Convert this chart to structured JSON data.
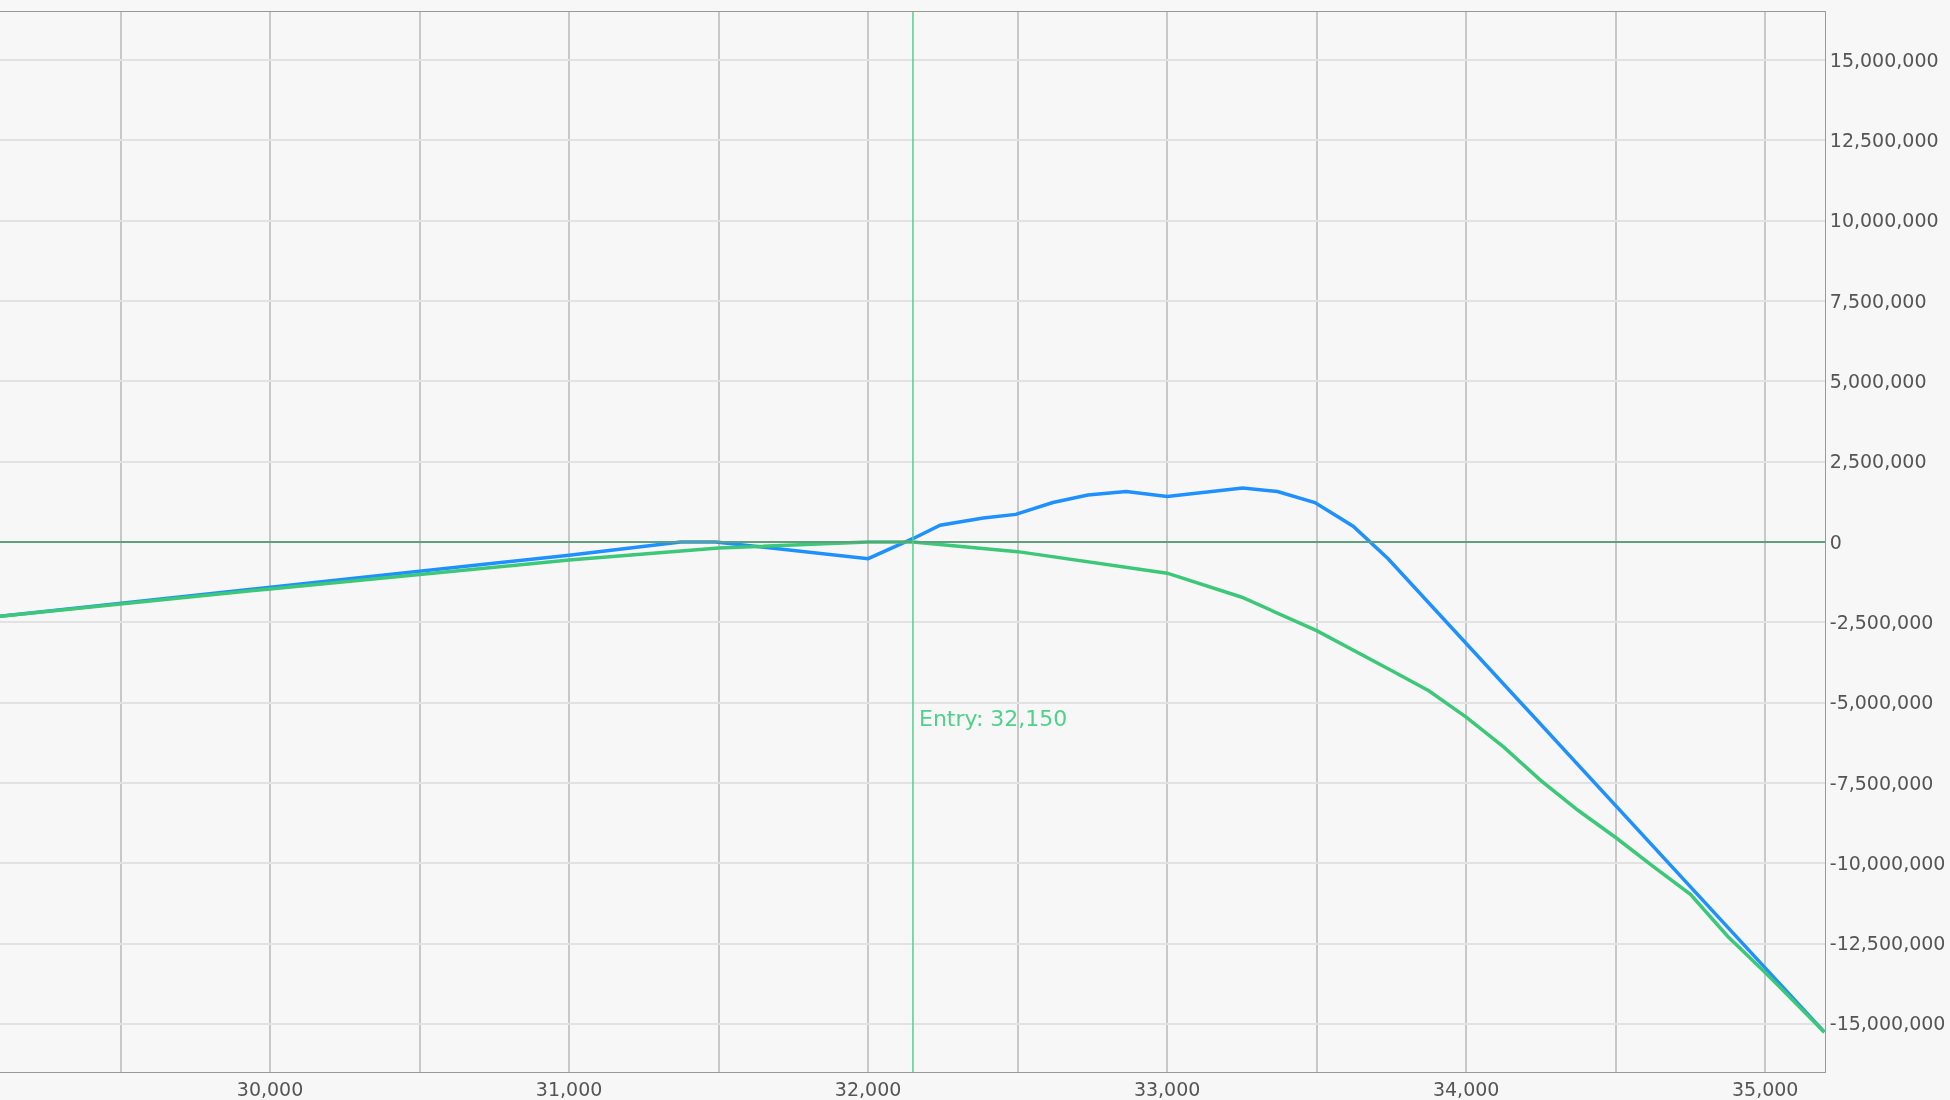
{
  "chart_data": {
    "type": "line",
    "x": [
      29097,
      31000,
      31373,
      31490,
      32000,
      32151,
      32241,
      32385,
      32494,
      32618,
      32735,
      32863,
      33000,
      33253,
      33369,
      33494,
      33622,
      33739,
      35198
    ],
    "series": [
      {
        "color": "#1e90ff",
        "values": [
          -2310000.0,
          -410000.0,
          0,
          0,
          -520000.0,
          110000.0,
          520000.0,
          750000.0,
          860000.0,
          1230000.0,
          1460000.0,
          1570000.0,
          1420000.0,
          1680000.0,
          1570000.0,
          1230000.0,
          490000.0,
          -520000.0,
          -15260000.0
        ]
      },
      {
        "color": "#3cc878",
        "x": [
          29097,
          30000,
          31000,
          31500,
          32000,
          32150,
          32500,
          33000,
          33250,
          33500,
          33750,
          33875,
          34000,
          34125,
          34250,
          34375,
          34500,
          34625,
          34750,
          34875,
          35000,
          35198
        ],
        "values": [
          -2310000.0,
          -1460000.0,
          -560000.0,
          -190000.0,
          0,
          0,
          -300000.0,
          -970000.0,
          -1720000.0,
          -2760000.0,
          -4000000.0,
          -4630000.0,
          -5450000.0,
          -6380000.0,
          -7430000.0,
          -8360000.0,
          -9200000.0,
          -10100000.0,
          -10970000.0,
          -12280000.0,
          -13400000.0,
          -15260000.0
        ]
      }
    ],
    "xlim": [
      29097,
      35200
    ],
    "xticks": [
      {
        "value": 29500,
        "label": null
      },
      {
        "value": 30000,
        "label": "30,000"
      },
      {
        "value": 30500,
        "label": null
      },
      {
        "value": 31000,
        "label": "31,000"
      },
      {
        "value": 31500,
        "label": null
      },
      {
        "value": 32000,
        "label": "32,000"
      },
      {
        "value": 32500,
        "label": null
      },
      {
        "value": 33000,
        "label": "33,000"
      },
      {
        "value": 33500,
        "label": null
      },
      {
        "value": 34000,
        "label": "34,000"
      },
      {
        "value": 34500,
        "label": null
      },
      {
        "value": 35000,
        "label": "35,000"
      }
    ],
    "ylim": [
      -16500000,
      16500000
    ],
    "yticks": [
      {
        "value": -15000000,
        "label": "-15,000,000"
      },
      {
        "value": -12500000,
        "label": "-12,500,000"
      },
      {
        "value": -10000000,
        "label": "-10,000,000"
      },
      {
        "value": -7500000,
        "label": "-7,500,000"
      },
      {
        "value": -5000000,
        "label": "-5,000,000"
      },
      {
        "value": -2500000,
        "label": "-2,500,000"
      },
      0,
      {
        "value": 2500000,
        "label": "2,500,000"
      },
      {
        "value": 5000000,
        "label": "5,000,000"
      },
      {
        "value": 7500000,
        "label": "7,500,000"
      },
      {
        "value": 10000000,
        "label": "10,000,000"
      },
      {
        "value": 12500000,
        "label": "12,500,000"
      },
      {
        "value": 15000000,
        "label": "15,000,000"
      }
    ],
    "grid": true,
    "line_style": "solid",
    "ref_lines": [
      {
        "axis": "y",
        "value": 0,
        "color": "#5fa07f"
      },
      {
        "axis": "x",
        "value": 32150,
        "label": "Entry: 32,150",
        "color": "#4fd18b"
      }
    ]
  }
}
